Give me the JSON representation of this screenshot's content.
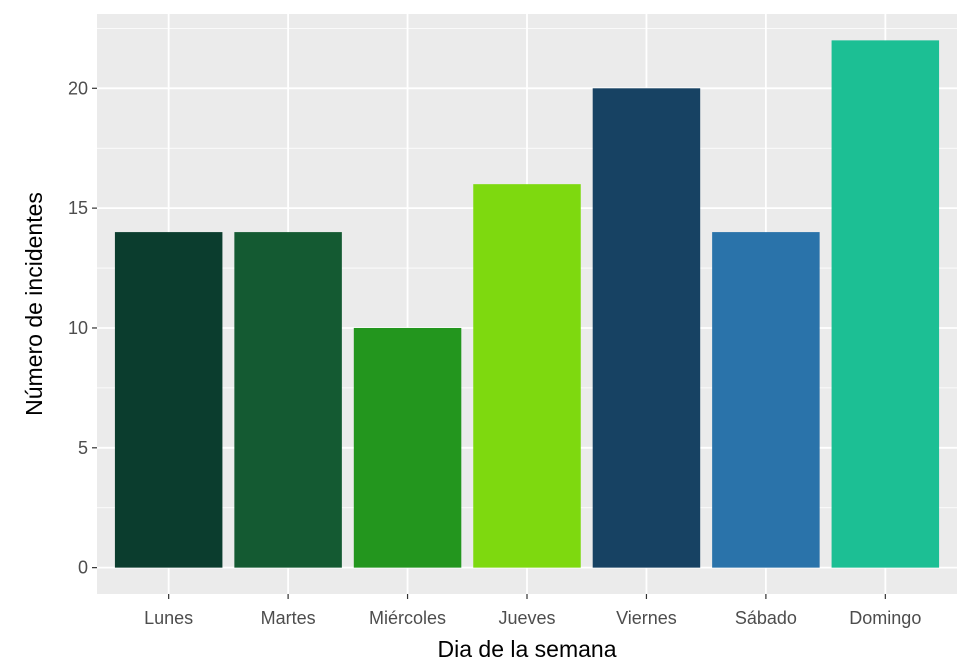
{
  "chart_data": {
    "type": "bar",
    "title": "",
    "xlabel": "Dia de la semana",
    "ylabel": "Número de incidentes",
    "categories": [
      "Lunes",
      "Martes",
      "Miércoles",
      "Jueves",
      "Viernes",
      "Sábado",
      "Domingo"
    ],
    "values": [
      14,
      14,
      10,
      16,
      20,
      14,
      22
    ],
    "bar_colors": [
      "#0b3d2e",
      "#145a32",
      "#23961e",
      "#7ed90f",
      "#174263",
      "#2a73aa",
      "#1cbf94"
    ],
    "ylim": [
      -1.1,
      23.1
    ],
    "yticks": [
      0,
      5,
      10,
      15,
      20
    ],
    "ytick_labels": [
      "0",
      "5",
      "10",
      "15",
      "20"
    ],
    "grid": true,
    "legend": "none",
    "panel_background": "#ebebeb",
    "grid_color": "#ffffff"
  }
}
